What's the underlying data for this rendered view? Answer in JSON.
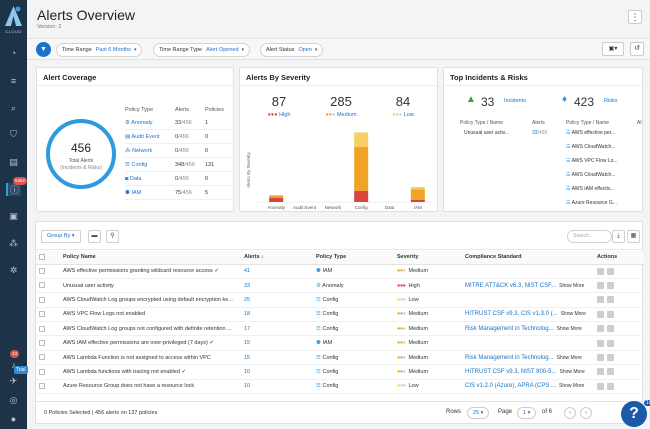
{
  "app": {
    "brand": "CLOUD",
    "title": "Alerts Overview",
    "version": "Version: 2"
  },
  "sidebar": {
    "alerts_badge": "5262",
    "notif_badge": "13",
    "trial": "Trial"
  },
  "filters": [
    {
      "label": "Time Range",
      "value": "Past 6 Months"
    },
    {
      "label": "Time Range Type",
      "value": "Alert Opened"
    },
    {
      "label": "Alert Status",
      "value": "Open"
    }
  ],
  "coverage": {
    "title": "Alert Coverage",
    "total": "456",
    "total_label": "Total Alerts",
    "total_sub": "(Incidents & Risks)",
    "headers": [
      "Policy Type",
      "Alerts",
      "Policies"
    ],
    "rows": [
      {
        "type": "Anomaly",
        "alerts": "33",
        "of": "/456",
        "policies": "1"
      },
      {
        "type": "Audit Event",
        "alerts": "0",
        "of": "/456",
        "policies": "0"
      },
      {
        "type": "Network",
        "alerts": "0",
        "of": "/456",
        "policies": "0"
      },
      {
        "type": "Config",
        "alerts": "348",
        "of": "/456",
        "policies": "131"
      },
      {
        "type": "Data",
        "alerts": "0",
        "of": "/456",
        "policies": "0"
      },
      {
        "type": "IAM",
        "alerts": "75",
        "of": "/456",
        "policies": "5"
      }
    ]
  },
  "severity": {
    "title": "Alerts By Severity",
    "high": "87",
    "medium": "285",
    "low": "84",
    "high_label": "High",
    "medium_label": "Medium",
    "low_label": "Low",
    "colors": {
      "high": "#d9463e",
      "medium": "#f0a325",
      "low": "#f6cf66"
    }
  },
  "chart_data": {
    "type": "bar",
    "categories": [
      "Anomaly",
      "Audit Event",
      "Network",
      "Config",
      "Data",
      "IAM"
    ],
    "series": [
      {
        "name": "High",
        "values": [
          20,
          0,
          0,
          56,
          0,
          11
        ]
      },
      {
        "name": "Medium",
        "values": [
          13,
          0,
          0,
          219,
          0,
          53
        ]
      },
      {
        "name": "Low",
        "values": [
          0,
          0,
          0,
          73,
          0,
          11
        ]
      }
    ],
    "ylabel": "Alerts By Severity"
  },
  "top": {
    "title": "Top Incidents & Risks",
    "incidents_count": "33",
    "incidents_label": "Incidents",
    "risks_count": "423",
    "risks_label": "Risks",
    "headers_left": [
      "Policy Type / Name",
      "Alerts"
    ],
    "headers_right": [
      "Policy Type / Name",
      "Al"
    ],
    "left_rows": [
      {
        "name": "Unusual user activ...",
        "alerts": "33",
        "of": "/456"
      }
    ],
    "right_rows": [
      "AWS effective per...",
      "AWS CloudWatch...",
      "AWS VPC Flow Lo...",
      "AWS CloudWatch...",
      "AWS IAM effectiv...",
      "Azure Resource G..."
    ]
  },
  "toolbar": {
    "group_by": "Group By",
    "search_placeholder": "Search..."
  },
  "table": {
    "headers": [
      "Policy Name",
      "Alerts",
      "Policy Type",
      "Severity",
      "Compliance Standard",
      "Actions"
    ],
    "rows": [
      {
        "name": "AWS effective permissions granting wildcard resource access",
        "check": true,
        "alerts": "41",
        "type": "IAM",
        "sev": "Medium",
        "comp": "",
        "more": ""
      },
      {
        "name": "Unusual user activity",
        "check": false,
        "alerts": "33",
        "type": "Anomaly",
        "sev": "High",
        "comp": "MITRE ATT&CK v6.3, NIST CSF...",
        "more": "Show More"
      },
      {
        "name": "AWS CloudWatch Log groups encrypted using default encryption ke...",
        "check": false,
        "alerts": "25",
        "type": "Config",
        "sev": "Low",
        "comp": "",
        "more": ""
      },
      {
        "name": "AWS VPC Flow Logs not enabled",
        "check": false,
        "alerts": "18",
        "type": "Config",
        "sev": "Medium",
        "comp": "HITRUST CSF v9.3, CIS v1.3.0 (...",
        "more": "Show More"
      },
      {
        "name": "AWS CloudWatch Log groups not configured with definite retention ...",
        "check": false,
        "alerts": "17",
        "type": "Config",
        "sev": "Medium",
        "comp": "Risk Management in Technolog...",
        "more": "Show More"
      },
      {
        "name": "AWS IAM effective permissions are over-privileged (7 days)",
        "check": true,
        "alerts": "15",
        "type": "IAM",
        "sev": "Medium",
        "comp": "",
        "more": ""
      },
      {
        "name": "AWS Lambda Function is not assigned to access within VPC",
        "check": false,
        "alerts": "15",
        "type": "Config",
        "sev": "Medium",
        "comp": "Risk Management in Technolog...",
        "more": "Show More"
      },
      {
        "name": "AWS Lambda functions with tracing not enabled",
        "check": true,
        "alerts": "10",
        "type": "Config",
        "sev": "Medium",
        "comp": "HITRUST CSF v9.3, NIST 800-5...",
        "more": "Show More"
      },
      {
        "name": "Azure Resource Group does not have a resource lock",
        "check": false,
        "alerts": "10",
        "type": "Config",
        "sev": "Low",
        "comp": "CIS v1.2.0 (Azure), APRA (CPS ...",
        "more": "Show More"
      }
    ]
  },
  "footer": {
    "selected": "0 Policies Selected | 456 alerts on 137 policies",
    "rows_label": "Rows",
    "rows_value": "25",
    "page_label": "Page",
    "page_value": "1",
    "of_label": "of 6"
  },
  "help": {
    "badge": "10",
    "label": "?"
  }
}
